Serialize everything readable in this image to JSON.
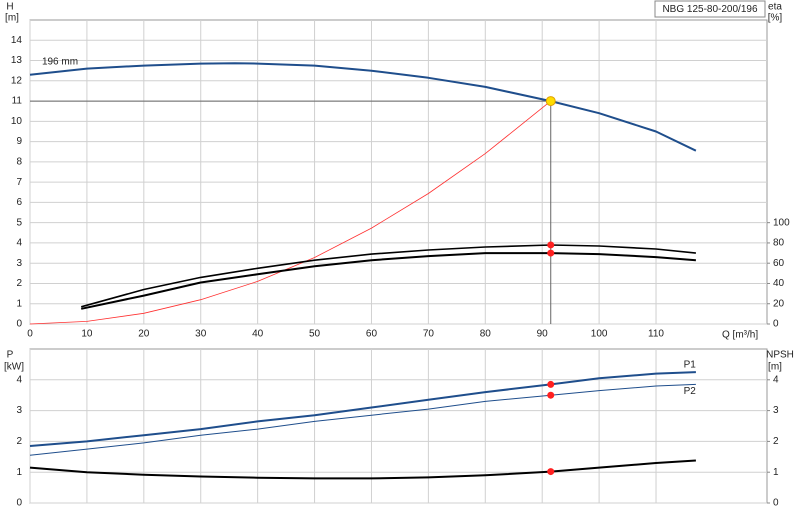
{
  "chart_data": [
    {
      "type": "line",
      "title": "NBG 125-80-200/196",
      "ylabel": "H",
      "yunit": "[m]",
      "y2label": "eta",
      "y2unit": "[%]",
      "xlabel": "Q [m³/h]",
      "xlim": [
        0,
        129.5
      ],
      "xticks": [
        0,
        10,
        20,
        30,
        40,
        50,
        60,
        70,
        80,
        90,
        100,
        110
      ],
      "ylim": [
        0,
        15
      ],
      "yticks": [
        0,
        1,
        2,
        3,
        4,
        5,
        6,
        7,
        8,
        9,
        10,
        11,
        12,
        13,
        14
      ],
      "y2lim": [
        0,
        300
      ],
      "y2ticks": [
        0,
        20,
        40,
        60,
        80,
        100
      ],
      "grid": true,
      "duty_point": {
        "x": 91.5,
        "y": 11,
        "color": "#ffdd00"
      },
      "series": [
        {
          "name": "196 mm",
          "label_at": "start",
          "color": "#1f4e8c",
          "width": 2,
          "x": [
            0,
            10,
            20,
            30,
            36,
            40,
            50,
            60,
            70,
            80,
            91.5,
            100,
            110,
            117
          ],
          "values": [
            12.3,
            12.6,
            12.75,
            12.85,
            12.87,
            12.85,
            12.75,
            12.5,
            12.15,
            11.7,
            11,
            10.4,
            9.5,
            8.55
          ]
        },
        {
          "color": "#ff3030",
          "width": 0.8,
          "x": [
            0,
            10,
            20,
            30,
            40,
            50,
            60,
            70,
            80,
            91.5
          ],
          "values": [
            0,
            0.13,
            0.53,
            1.2,
            2.1,
            3.28,
            4.73,
            6.44,
            8.41,
            11
          ]
        },
        {
          "color": "#000000",
          "width": 1.6,
          "axis": "y2",
          "marker_color": "#ff2020",
          "x": [
            9,
            20,
            30,
            40,
            50,
            60,
            70,
            80,
            91.5,
            100,
            110,
            117
          ],
          "values": [
            17,
            34,
            46,
            55,
            63,
            69,
            73,
            76,
            78,
            77,
            74,
            70
          ]
        },
        {
          "color": "#000000",
          "width": 2,
          "axis": "y2",
          "marker_color": "#ff2020",
          "x": [
            9,
            20,
            30,
            40,
            50,
            60,
            70,
            80,
            91.5,
            100,
            110,
            117
          ],
          "values": [
            15,
            28,
            41,
            49,
            57,
            63,
            67,
            70,
            70,
            69,
            66,
            63
          ]
        }
      ]
    },
    {
      "type": "line",
      "ylabel": "P",
      "yunit": "[kW]",
      "y2label": "NPSH",
      "y2unit": "[m]",
      "xlim": [
        0,
        129.5
      ],
      "xticks": [
        0,
        10,
        20,
        30,
        40,
        50,
        60,
        70,
        80,
        90,
        100,
        110
      ],
      "ylim": [
        0,
        5
      ],
      "yticks": [
        0,
        1,
        2,
        3,
        4
      ],
      "y2lim": [
        0,
        5
      ],
      "y2ticks": [
        0,
        1,
        2,
        3,
        4
      ],
      "grid": true,
      "duty_point": {
        "x": 91.5
      },
      "series": [
        {
          "name": "P1",
          "label_at": "end-above",
          "color": "#1f4e8c",
          "width": 2,
          "marker_color": "#ff2020",
          "x": [
            0,
            10,
            20,
            30,
            40,
            50,
            60,
            70,
            80,
            91.5,
            100,
            110,
            117
          ],
          "values": [
            1.85,
            2.0,
            2.2,
            2.4,
            2.65,
            2.85,
            3.1,
            3.35,
            3.6,
            3.85,
            4.05,
            4.2,
            4.25
          ]
        },
        {
          "name": "P2",
          "label_at": "end-below",
          "color": "#1f4e8c",
          "width": 1,
          "marker_color": "#ff2020",
          "x": [
            0,
            10,
            20,
            30,
            40,
            50,
            60,
            70,
            80,
            91.5,
            100,
            110,
            117
          ],
          "values": [
            1.55,
            1.75,
            1.95,
            2.2,
            2.4,
            2.65,
            2.85,
            3.05,
            3.3,
            3.5,
            3.65,
            3.8,
            3.85
          ]
        },
        {
          "color": "#000000",
          "width": 2,
          "axis": "y2",
          "marker_color": "#ff2020",
          "x": [
            0,
            10,
            20,
            30,
            40,
            50,
            60,
            70,
            80,
            91.5,
            100,
            110,
            117
          ],
          "values": [
            1.15,
            1.0,
            0.92,
            0.86,
            0.82,
            0.8,
            0.8,
            0.83,
            0.9,
            1.02,
            1.15,
            1.3,
            1.38
          ]
        }
      ]
    }
  ]
}
